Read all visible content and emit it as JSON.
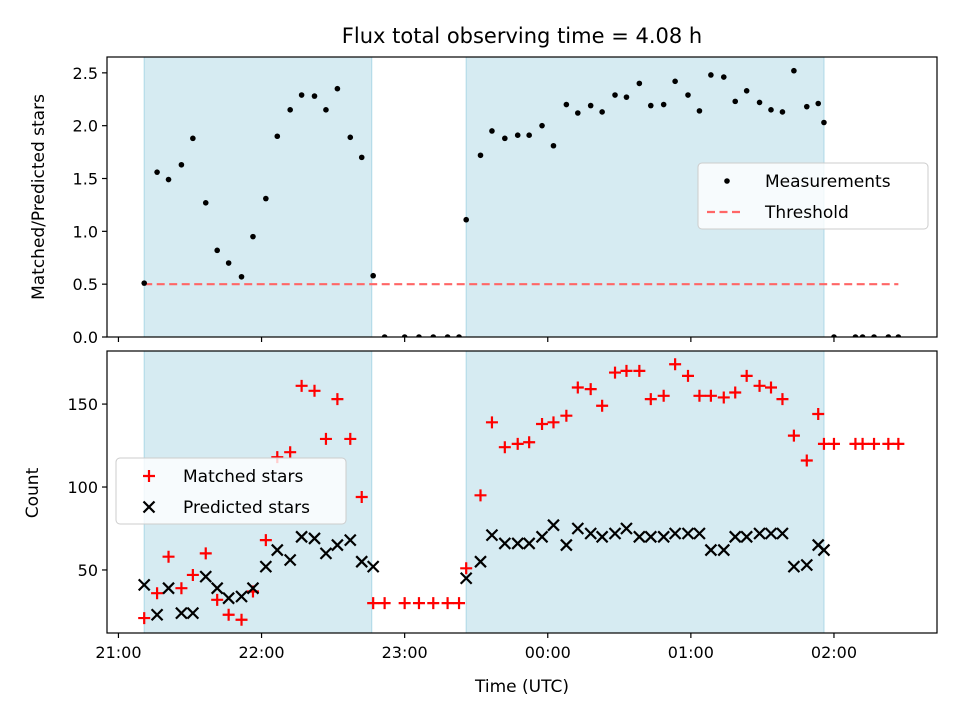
{
  "chart_data": [
    {
      "type": "scatter",
      "title": "Flux total observing time = 4.08 h",
      "ylabel": "Matched/Predicted stars",
      "xlabel": "",
      "x_unit": "hours since 21:00 UTC",
      "xlim": [
        -0.08,
        5.72
      ],
      "ylim": [
        0.0,
        2.65
      ],
      "yticks": [
        "0.0",
        "0.5",
        "1.0",
        "1.5",
        "2.0",
        "2.5"
      ],
      "shaded_spans": [
        [
          0.18,
          1.77
        ],
        [
          2.43,
          4.93
        ]
      ],
      "shade_color": "#add8e6",
      "legend": {
        "position": "center-right",
        "entries": [
          "Measurements",
          "Threshold"
        ]
      },
      "threshold": {
        "name": "Threshold",
        "value": 0.5,
        "x_range": [
          0.18,
          5.45
        ],
        "color": "#ff6666"
      },
      "series": [
        {
          "name": "Measurements",
          "color": "#000000",
          "x": [
            0.18,
            0.27,
            0.35,
            0.44,
            0.52,
            0.61,
            0.69,
            0.77,
            0.86,
            0.94,
            1.03,
            1.11,
            1.2,
            1.28,
            1.37,
            1.45,
            1.53,
            1.62,
            1.7,
            1.78,
            1.86,
            2.0,
            2.1,
            2.2,
            2.3,
            2.38,
            2.43,
            2.53,
            2.61,
            2.7,
            2.79,
            2.87,
            2.96,
            3.04,
            3.13,
            3.21,
            3.3,
            3.38,
            3.47,
            3.55,
            3.64,
            3.72,
            3.81,
            3.89,
            3.98,
            4.06,
            4.14,
            4.23,
            4.31,
            4.39,
            4.48,
            4.56,
            4.64,
            4.72,
            4.81,
            4.89,
            4.93,
            5.0,
            5.15,
            5.2,
            5.28,
            5.38,
            5.45
          ],
          "y": [
            0.51,
            1.56,
            1.49,
            1.63,
            1.88,
            1.27,
            0.82,
            0.7,
            0.57,
            0.95,
            1.31,
            1.9,
            2.15,
            2.29,
            2.28,
            2.15,
            2.35,
            1.89,
            1.7,
            0.58,
            0.0,
            0.0,
            0.0,
            0.0,
            0.0,
            0.0,
            1.11,
            1.72,
            1.95,
            1.88,
            1.91,
            1.91,
            2.0,
            1.81,
            2.2,
            2.12,
            2.19,
            2.13,
            2.29,
            2.27,
            2.4,
            2.19,
            2.2,
            2.42,
            2.29,
            2.14,
            2.48,
            2.46,
            2.23,
            2.33,
            2.22,
            2.15,
            2.13,
            2.52,
            2.18,
            2.21,
            2.03,
            0.0,
            0.0,
            0.0,
            0.0,
            0.0,
            0.0
          ]
        }
      ]
    },
    {
      "type": "scatter",
      "title": "",
      "ylabel": "Count",
      "xlabel": "Time (UTC)",
      "x_unit": "hours since 21:00 UTC",
      "xlim": [
        -0.08,
        5.72
      ],
      "ylim": [
        12,
        182
      ],
      "xticks": [
        {
          "value": 0,
          "label": "21:00"
        },
        {
          "value": 1,
          "label": "22:00"
        },
        {
          "value": 2,
          "label": "23:00"
        },
        {
          "value": 3,
          "label": "00:00"
        },
        {
          "value": 4,
          "label": "01:00"
        },
        {
          "value": 5,
          "label": "02:00"
        }
      ],
      "yticks": [
        "50",
        "100",
        "150"
      ],
      "shaded_spans": [
        [
          0.18,
          1.77
        ],
        [
          2.43,
          4.93
        ]
      ],
      "legend": {
        "position": "center-left",
        "entries": [
          "Matched stars",
          "Predicted stars"
        ]
      },
      "series": [
        {
          "name": "Matched stars",
          "color": "#ff0000",
          "marker": "plus",
          "x": [
            0.18,
            0.27,
            0.35,
            0.44,
            0.52,
            0.61,
            0.69,
            0.77,
            0.86,
            0.94,
            1.03,
            1.11,
            1.2,
            1.28,
            1.37,
            1.45,
            1.53,
            1.62,
            1.7,
            1.78,
            1.86,
            2.0,
            2.1,
            2.2,
            2.3,
            2.38,
            2.43,
            2.53,
            2.61,
            2.7,
            2.79,
            2.87,
            2.96,
            3.04,
            3.13,
            3.21,
            3.3,
            3.38,
            3.47,
            3.55,
            3.64,
            3.72,
            3.81,
            3.89,
            3.98,
            4.06,
            4.14,
            4.23,
            4.31,
            4.39,
            4.48,
            4.56,
            4.64,
            4.72,
            4.81,
            4.89,
            4.93,
            5.0,
            5.15,
            5.2,
            5.28,
            5.38,
            5.45
          ],
          "y": [
            21,
            36,
            58,
            39,
            47,
            60,
            32,
            23,
            20,
            37,
            68,
            118,
            121,
            161,
            158,
            129,
            153,
            129,
            94,
            30,
            30,
            30,
            30,
            30,
            30,
            30,
            51,
            95,
            139,
            124,
            126,
            127,
            138,
            139,
            143,
            160,
            159,
            149,
            169,
            170,
            170,
            153,
            155,
            174,
            167,
            155,
            155,
            154,
            157,
            167,
            161,
            160,
            153,
            131,
            116,
            144,
            126,
            126,
            126,
            126,
            126,
            126,
            126
          ]
        },
        {
          "name": "Predicted stars",
          "color": "#000000",
          "marker": "x",
          "x": [
            0.18,
            0.27,
            0.35,
            0.44,
            0.52,
            0.61,
            0.69,
            0.77,
            0.86,
            0.94,
            1.03,
            1.11,
            1.2,
            1.28,
            1.37,
            1.45,
            1.53,
            1.62,
            1.7,
            1.78,
            2.43,
            2.53,
            2.61,
            2.7,
            2.79,
            2.87,
            2.96,
            3.04,
            3.13,
            3.21,
            3.3,
            3.38,
            3.47,
            3.55,
            3.64,
            3.72,
            3.81,
            3.89,
            3.98,
            4.06,
            4.14,
            4.23,
            4.31,
            4.39,
            4.48,
            4.56,
            4.64,
            4.72,
            4.81,
            4.89,
            4.93
          ],
          "y": [
            41,
            23,
            39,
            24,
            24,
            46,
            39,
            33,
            34,
            39,
            52,
            62,
            56,
            70,
            69,
            60,
            65,
            68,
            55,
            52,
            45,
            55,
            71,
            66,
            66,
            66,
            70,
            77,
            65,
            75,
            72,
            70,
            72,
            75,
            70,
            70,
            70,
            72,
            72,
            72,
            62,
            62,
            70,
            70,
            72,
            72,
            72,
            52,
            53,
            65,
            62
          ]
        }
      ]
    }
  ]
}
